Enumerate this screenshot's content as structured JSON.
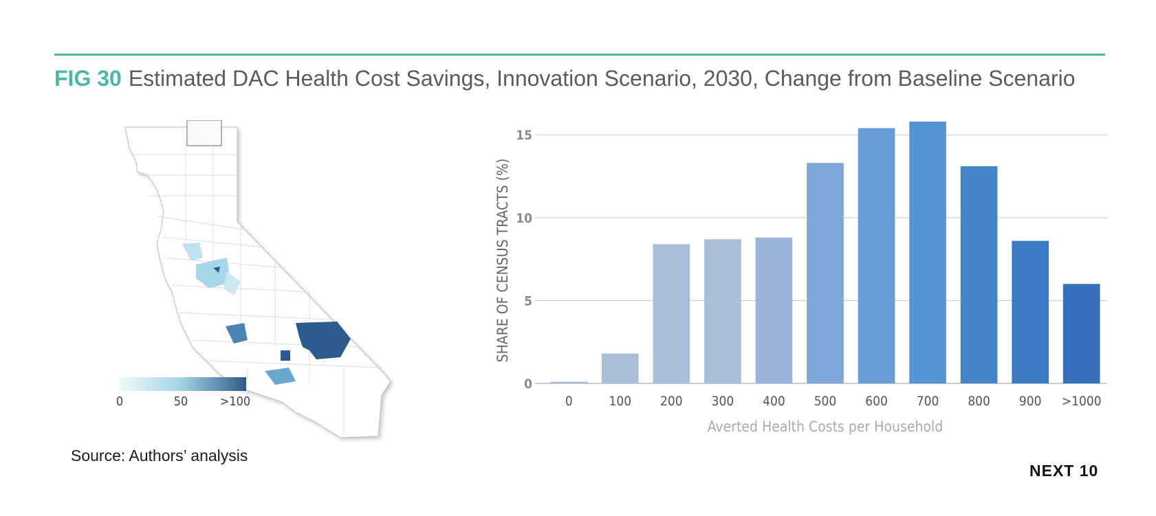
{
  "header": {
    "fig_label": "FIG 30",
    "title": "Estimated DAC Health Cost Savings, Innovation Scenario, 2030, Change from Baseline Scenario"
  },
  "map_legend": {
    "min_label": "0",
    "mid_label": "50",
    "max_label": ">100",
    "color_start": "#f2fbfc",
    "color_mid": "#9fd3e3",
    "color_end": "#2d5a8c"
  },
  "source": "Source: Authors’ analysis",
  "brand": "NEXT 10",
  "chart_data": {
    "type": "bar",
    "categories": [
      "0",
      "100",
      "200",
      "300",
      "400",
      "500",
      "600",
      "700",
      "800",
      "900",
      ">1000"
    ],
    "values": [
      0.1,
      1.8,
      8.4,
      8.7,
      8.8,
      13.3,
      15.4,
      15.8,
      13.1,
      8.6,
      6.0
    ],
    "colors": [
      "#a9bfd8",
      "#a9bfd8",
      "#a9bfd8",
      "#a9bfd8",
      "#98b5d9",
      "#7ea7d8",
      "#679dd5",
      "#5593d2",
      "#4585c7",
      "#3a7bc1",
      "#3670b8"
    ],
    "xlabel": "Averted Health Costs per Household",
    "ylabel": "SHARE OF CENSUS TRACTS (%)",
    "ylim": [
      0,
      16.5
    ],
    "yticks": [
      0,
      5,
      10,
      15
    ],
    "grid": true
  }
}
